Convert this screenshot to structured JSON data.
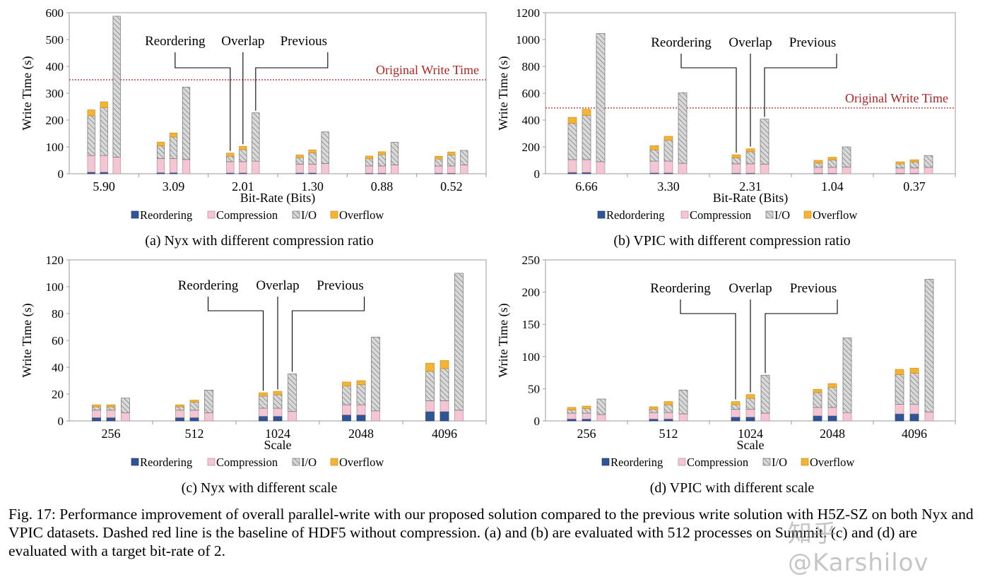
{
  "chart_data": [
    {
      "type": "bar",
      "subtype": "stacked-grouped",
      "id": "a",
      "caption": "(a) Nyx with different compression ratio",
      "xlabel": "Bit-Rate (Bits)",
      "ylabel": "Write Time (s)",
      "ylim": [
        0,
        600
      ],
      "yticks": [
        0,
        100,
        200,
        300,
        400,
        500,
        600
      ],
      "categories": [
        "5.90",
        "3.09",
        "2.01",
        "1.30",
        "0.88",
        "0.52"
      ],
      "bars_per_group": [
        "Reordering",
        "Overlap",
        "Previous"
      ],
      "stack_order": [
        "Reordering",
        "Compression",
        "I/O",
        "Overflow"
      ],
      "values": [
        [
          [
            6,
            62,
            148,
            22
          ],
          [
            6,
            62,
            178,
            22
          ],
          [
            0,
            62,
            525,
            0
          ]
        ],
        [
          [
            4,
            53,
            47,
            14
          ],
          [
            4,
            53,
            80,
            15
          ],
          [
            0,
            53,
            270,
            0
          ]
        ],
        [
          [
            3,
            42,
            20,
            12
          ],
          [
            3,
            42,
            45,
            12
          ],
          [
            0,
            47,
            180,
            0
          ]
        ],
        [
          [
            3,
            33,
            24,
            10
          ],
          [
            3,
            33,
            42,
            11
          ],
          [
            0,
            38,
            118,
            0
          ]
        ],
        [
          [
            2,
            27,
            27,
            10
          ],
          [
            2,
            27,
            42,
            11
          ],
          [
            0,
            33,
            84,
            0
          ]
        ],
        [
          [
            2,
            27,
            26,
            10
          ],
          [
            2,
            27,
            41,
            11
          ],
          [
            0,
            33,
            54,
            0
          ]
        ]
      ],
      "reference_line": {
        "label": "Original Write Time",
        "value": 350
      },
      "annotation_labels": [
        "Reordering",
        "Overlap",
        "Previous"
      ],
      "annotation_group": 2,
      "legend": [
        "Reordering",
        "Compression",
        "I/O",
        "Overflow"
      ]
    },
    {
      "type": "bar",
      "subtype": "stacked-grouped",
      "id": "b",
      "caption": "(b) VPIC with different compression ratio",
      "xlabel": "Bit-Rate (Bits)",
      "ylabel": "Write Time (s)",
      "ylim": [
        0,
        1200
      ],
      "yticks": [
        0,
        200,
        400,
        600,
        800,
        1000,
        1200
      ],
      "categories": [
        "6.66",
        "3.30",
        "2.31",
        "1.04",
        "0.37"
      ],
      "bars_per_group": [
        "Reordering",
        "Overlap",
        "Previous"
      ],
      "stack_order": [
        "Reordering",
        "Compression",
        "I/O",
        "Overflow"
      ],
      "values": [
        [
          [
            10,
            95,
            270,
            45
          ],
          [
            10,
            95,
            330,
            45
          ],
          [
            0,
            90,
            955,
            0
          ]
        ],
        [
          [
            6,
            88,
            85,
            30
          ],
          [
            6,
            88,
            155,
            30
          ],
          [
            0,
            78,
            525,
            0
          ]
        ],
        [
          [
            4,
            70,
            45,
            22
          ],
          [
            4,
            70,
            90,
            22
          ],
          [
            0,
            72,
            335,
            0
          ]
        ],
        [
          [
            3,
            45,
            32,
            20
          ],
          [
            3,
            45,
            55,
            20
          ],
          [
            0,
            50,
            150,
            0
          ]
        ],
        [
          [
            3,
            40,
            30,
            16
          ],
          [
            3,
            40,
            45,
            16
          ],
          [
            0,
            48,
            88,
            0
          ]
        ]
      ],
      "reference_line": {
        "label": "Original Write Time",
        "value": 490
      },
      "annotation_labels": [
        "Reordering",
        "Overlap",
        "Previous"
      ],
      "annotation_group": 2,
      "legend": [
        "Redordering",
        "Compression",
        "I/O",
        "Overflow"
      ]
    },
    {
      "type": "bar",
      "subtype": "stacked-grouped",
      "id": "c",
      "caption": "(c) Nyx with different scale",
      "xlabel": "Scale",
      "ylabel": "Write Time (s)",
      "ylim": [
        0,
        120
      ],
      "yticks": [
        0,
        20,
        40,
        60,
        80,
        100,
        120
      ],
      "categories": [
        "256",
        "512",
        "1024",
        "2048",
        "4096"
      ],
      "bars_per_group": [
        "Reordering",
        "Overlap",
        "Previous"
      ],
      "stack_order": [
        "Reordering",
        "Compression",
        "I/O",
        "Overflow"
      ],
      "values": [
        [
          [
            2.5,
            5.5,
            2.5,
            1.5
          ],
          [
            2.5,
            5.5,
            2.5,
            1.5
          ],
          [
            0,
            6,
            11,
            0
          ]
        ],
        [
          [
            2.5,
            5.5,
            2.5,
            1.5
          ],
          [
            2.5,
            5.5,
            6,
            1.5
          ],
          [
            0,
            6,
            17,
            0
          ]
        ],
        [
          [
            3.5,
            6,
            9,
            2.5
          ],
          [
            3.5,
            6,
            10,
            2.5
          ],
          [
            0,
            7,
            28,
            0
          ]
        ],
        [
          [
            4.5,
            7.5,
            14,
            3
          ],
          [
            4.5,
            7.5,
            15,
            3
          ],
          [
            0,
            7.5,
            55,
            0
          ]
        ],
        [
          [
            7,
            8,
            22,
            6
          ],
          [
            7,
            8,
            24,
            6
          ],
          [
            0,
            8,
            102,
            0
          ]
        ]
      ],
      "annotation_labels": [
        "Reordering",
        "Overlap",
        "Previous"
      ],
      "annotation_group": 2,
      "legend": [
        "Reordering",
        "Compression",
        "I/O",
        "Overflow"
      ]
    },
    {
      "type": "bar",
      "subtype": "stacked-grouped",
      "id": "d",
      "caption": "(d) VPIC with different scale",
      "xlabel": "Scale",
      "ylabel": "Write Time (s)",
      "ylim": [
        0,
        250
      ],
      "yticks": [
        0,
        50,
        100,
        150,
        200,
        250
      ],
      "categories": [
        "256",
        "512",
        "1024",
        "2048",
        "4096"
      ],
      "bars_per_group": [
        "Reordering",
        "Overlap",
        "Previous"
      ],
      "stack_order": [
        "Reordering",
        "Compression",
        "I/O",
        "Overflow"
      ],
      "values": [
        [
          [
            3,
            9,
            5,
            4
          ],
          [
            3,
            9,
            7,
            4
          ],
          [
            0,
            10,
            24,
            0
          ]
        ],
        [
          [
            3,
            10,
            5,
            4
          ],
          [
            3,
            10,
            12,
            5
          ],
          [
            0,
            11,
            37,
            0
          ]
        ],
        [
          [
            6,
            12,
            7,
            5
          ],
          [
            6,
            12,
            17,
            6
          ],
          [
            0,
            12,
            59,
            0
          ]
        ],
        [
          [
            8,
            13,
            23,
            5
          ],
          [
            8,
            13,
            31,
            6
          ],
          [
            0,
            13,
            116,
            0
          ]
        ],
        [
          [
            11,
            15,
            46,
            8
          ],
          [
            11,
            15,
            48,
            8
          ],
          [
            0,
            14,
            206,
            0
          ]
        ]
      ],
      "annotation_labels": [
        "Reordering",
        "Overlap",
        "Previous"
      ],
      "annotation_group": 2,
      "legend": [
        "Reordering",
        "Compression",
        "I/O",
        "Overflow"
      ]
    }
  ],
  "colors": {
    "reordering": "#2f5597",
    "compression": "#f4c6d4",
    "io": "#d9d9d9",
    "overflow": "#f5b335",
    "reference": "#b22222",
    "axis": "#555555"
  },
  "caption_text": "Fig. 17: Performance improvement of overall parallel-write with our proposed solution compared to the previous write solution with H5Z-SZ on both Nyx and VPIC datasets. Dashed red line is the baseline of HDF5 without compression. (a) and (b) are evaluated with 512 processes on Summit. (c) and (d) are evaluated with a target bit-rate of 2.",
  "watermark": "知乎 @Karshilov"
}
